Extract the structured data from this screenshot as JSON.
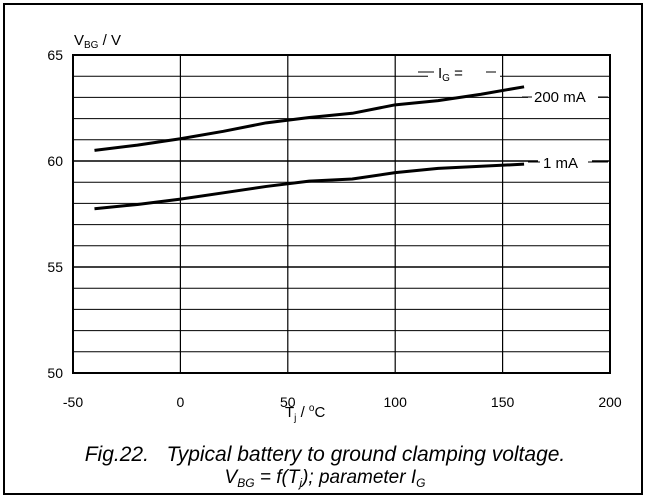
{
  "chart_data": {
    "type": "line",
    "title": "",
    "xlabel_main": "T",
    "xlabel_sub": "j",
    "xlabel_sep": " / ",
    "xlabel_sup": "o",
    "xlabel_unit": "C",
    "ylabel_main": "V",
    "ylabel_sub": "BG",
    "ylabel_unit": " / V",
    "xlim": [
      -50,
      200
    ],
    "ylim": [
      50,
      65
    ],
    "xticks": [
      -50,
      0,
      50,
      100,
      150,
      200
    ],
    "yticks": [
      50,
      55,
      60,
      65
    ],
    "grid": true,
    "legend_title_main": "I",
    "legend_title_sub": "G",
    "legend_title_eq": " =",
    "series": [
      {
        "name": "200 mA",
        "x": [
          -40,
          -20,
          0,
          20,
          40,
          60,
          80,
          100,
          120,
          140,
          160
        ],
        "y": [
          60.5,
          60.75,
          61.05,
          61.4,
          61.8,
          62.05,
          62.25,
          62.65,
          62.85,
          63.15,
          63.5
        ]
      },
      {
        "name": "1 mA",
        "x": [
          -40,
          -20,
          0,
          20,
          40,
          60,
          80,
          100,
          120,
          140,
          160
        ],
        "y": [
          57.75,
          57.95,
          58.2,
          58.5,
          58.8,
          59.05,
          59.15,
          59.45,
          59.65,
          59.75,
          59.85
        ]
      }
    ]
  },
  "caption": {
    "line1": "Fig.22.   Typical battery to ground clamping voltage.",
    "l2_v": "V",
    "l2_v_sub": "BG",
    "l2_mid": " = f(T",
    "l2_t_sub": "j",
    "l2_rest": "); parameter I",
    "l2_i_sub": "G"
  }
}
